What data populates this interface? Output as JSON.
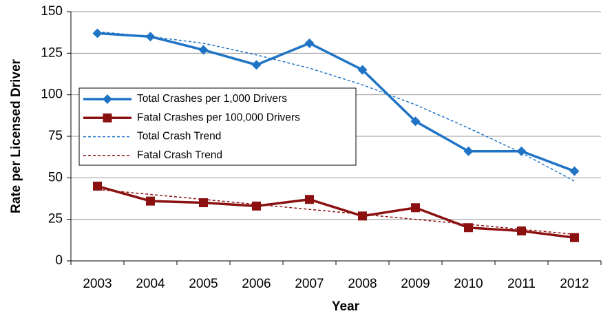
{
  "chart_data": {
    "type": "line",
    "x_label": "Year",
    "y_label": "Rate per Licensed Driver",
    "categories": [
      "2003",
      "2004",
      "2005",
      "2006",
      "2007",
      "2008",
      "2009",
      "2010",
      "2011",
      "2012"
    ],
    "series": [
      {
        "name": "Total Crashes per 1,000 Drivers",
        "color": "#1f74c6",
        "marker": "diamond",
        "dash": false,
        "values": [
          137,
          135,
          127,
          118,
          131,
          115,
          84,
          66,
          66,
          54
        ]
      },
      {
        "name": "Fatal Crashes per 100,000 Drivers",
        "color": "#8b1010",
        "marker": "square",
        "dash": false,
        "values": [
          45,
          36,
          35,
          33,
          37,
          27,
          32,
          20,
          18,
          14
        ]
      },
      {
        "name": "Total Crash Trend",
        "color": "#1f74c6",
        "marker": "none",
        "dash": true,
        "values": [
          138,
          135,
          131,
          124,
          116,
          106,
          94,
          80,
          65,
          48
        ]
      },
      {
        "name": "Fatal Crash Trend",
        "color": "#8b1010",
        "marker": "none",
        "dash": true,
        "values": [
          43,
          40,
          37,
          34,
          31,
          28,
          25,
          22,
          19,
          16
        ]
      }
    ],
    "ylim": [
      0,
      150
    ],
    "yticks": [
      0,
      25,
      50,
      75,
      100,
      125,
      150
    ],
    "grid": true,
    "legend": "left"
  }
}
